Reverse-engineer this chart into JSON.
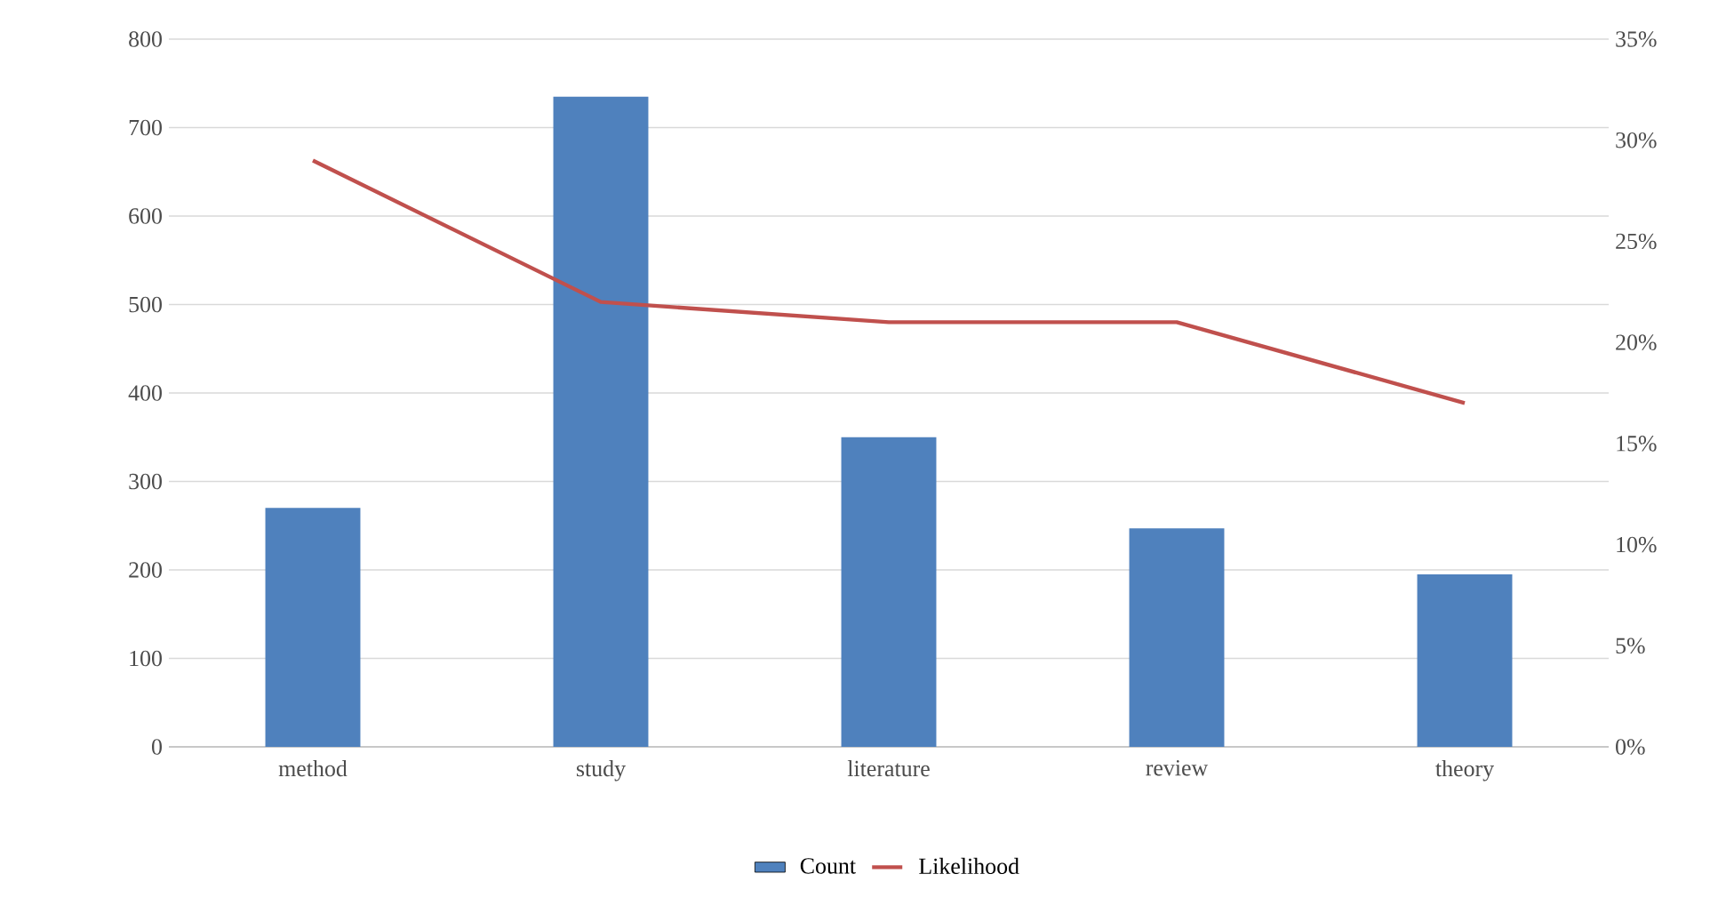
{
  "chart_data": {
    "type": "bar",
    "categories": [
      "method",
      "study",
      "literature",
      "review",
      "theory"
    ],
    "series": [
      {
        "name": "Count",
        "color": "#4f81bd",
        "values": [
          270,
          735,
          350,
          247,
          195
        ]
      },
      {
        "name": "Likelihood",
        "type": "line",
        "axis": "y2",
        "color": "#c0504d",
        "values": [
          29,
          22,
          21,
          21,
          17
        ]
      }
    ],
    "ylim": [
      0,
      800
    ],
    "yticks": [
      0,
      100,
      200,
      300,
      400,
      500,
      600,
      700,
      800
    ],
    "y2lim": [
      0,
      35
    ],
    "y2ticks": [
      {
        "value": 0,
        "label": "0%"
      },
      {
        "value": 5,
        "label": "5%"
      },
      {
        "value": 10,
        "label": "10%"
      },
      {
        "value": 15,
        "label": "15%"
      },
      {
        "value": 20,
        "label": "20%"
      },
      {
        "value": 25,
        "label": "25%"
      },
      {
        "value": 30,
        "label": "30%"
      },
      {
        "value": 35,
        "label": "35%"
      }
    ],
    "grid": "y",
    "legend": "bottom"
  }
}
